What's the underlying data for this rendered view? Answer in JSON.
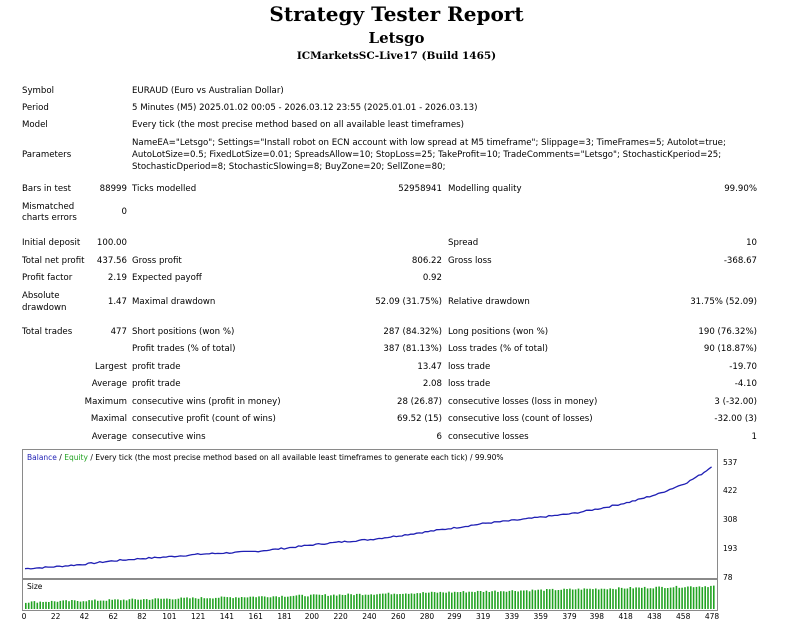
{
  "report": {
    "title": "Strategy Tester Report",
    "ea_name": "Letsgo",
    "server": "ICMarketsSC-Live17 (Build 1465)"
  },
  "settings": {
    "symbol_label": "Symbol",
    "symbol_value": "EURAUD (Euro vs Australian Dollar)",
    "period_label": "Period",
    "period_value": "5 Minutes (M5) 2025.01.02 00:05 - 2026.03.12 23:55 (2025.01.01 - 2026.03.13)",
    "model_label": "Model",
    "model_value": "Every tick (the most precise method based on all available least timeframes)",
    "parameters_label": "Parameters",
    "parameters_line1": "NameEA=\"Letsgo\"; Settings=\"Install robot on ECN account with low spread at M5 timeframe\"; Slippage=3; TimeFrames=5; Autolot=true;",
    "parameters_line2": "AutoLotSize=0.5; FixedLotSize=0.01; SpreadsAllow=10; StopLoss=25; TakeProfit=10; TradeComments=\"Letsgo\"; StochasticKperiod=25;",
    "parameters_line3": "StochasticDperiod=8; StochasticSlowing=8; BuyZone=20; SellZone=80;"
  },
  "stats": {
    "bars_label": "Bars in test",
    "bars_value": "88999",
    "ticks_label": "Ticks modelled",
    "ticks_value": "52958941",
    "quality_label": "Modelling quality",
    "quality_value": "99.90%",
    "mismatch_label_1": "Mismatched",
    "mismatch_label_2": "charts errors",
    "mismatch_value": "0",
    "deposit_label": "Initial deposit",
    "deposit_value": "100.00",
    "spread_label": "Spread",
    "spread_value": "10",
    "net_label": "Total net profit",
    "net_value": "437.56",
    "gross_profit_label": "Gross profit",
    "gross_profit_value": "806.22",
    "gross_loss_label": "Gross loss",
    "gross_loss_value": "-368.67",
    "pf_label": "Profit factor",
    "pf_value": "2.19",
    "payoff_label": "Expected payoff",
    "payoff_value": "0.92",
    "abs_dd_label_1": "Absolute",
    "abs_dd_label_2": "drawdown",
    "abs_dd_value": "1.47",
    "max_dd_label": "Maximal drawdown",
    "max_dd_value": "52.09 (31.75%)",
    "rel_dd_label": "Relative drawdown",
    "rel_dd_value": "31.75% (52.09)",
    "trades_label": "Total trades",
    "trades_value": "477",
    "short_label": "Short positions (won %)",
    "short_value": "287 (84.32%)",
    "long_label": "Long positions (won %)",
    "long_value": "190 (76.32%)",
    "profit_trades_label": "Profit trades (% of total)",
    "profit_trades_value": "387 (81.13%)",
    "loss_trades_label": "Loss trades (% of total)",
    "loss_trades_value": "90 (18.87%)",
    "largest_label": "Largest",
    "largest_profit_label": "profit trade",
    "largest_profit_value": "13.47",
    "largest_loss_label": "loss trade",
    "largest_loss_value": "-19.70",
    "average_label": "Average",
    "average_profit_label": "profit trade",
    "average_profit_value": "2.08",
    "average_loss_label": "loss trade",
    "average_loss_value": "-4.10",
    "maximum_label": "Maximum",
    "max_wins_label": "consecutive wins (profit in money)",
    "max_wins_value": "28 (26.87)",
    "max_losses_label": "consecutive losses (loss in money)",
    "max_losses_value": "3 (-32.00)",
    "maximal_label": "Maximal",
    "maximal_profit_label": "consecutive profit (count of wins)",
    "maximal_profit_value": "69.52 (15)",
    "maximal_loss_label": "consecutive loss (count of losses)",
    "maximal_loss_value": "-32.00 (3)",
    "average2_label": "Average",
    "avg_wins_label": "consecutive wins",
    "avg_wins_value": "6",
    "avg_losses_label": "consecutive losses",
    "avg_losses_value": "1"
  },
  "chart_legend": {
    "balance": "Balance",
    "sep1": " / ",
    "equity": "Equity",
    "rest": " / Every tick (the most precise method based on all available least timeframes to generate each tick) / 99.90%"
  },
  "size_label": "Size",
  "colors": {
    "balance": "#1f1fb4",
    "equity": "#22a322",
    "size_bars": "#22a322"
  },
  "chart_data": {
    "type": "line",
    "series": [
      {
        "name": "Balance",
        "x": [
          0,
          20,
          40,
          60,
          80,
          100,
          120,
          140,
          160,
          180,
          200,
          220,
          240,
          260,
          280,
          300,
          320,
          340,
          360,
          380,
          400,
          420,
          440,
          460,
          470,
          477
        ],
        "y": [
          100,
          108,
          118,
          132,
          142,
          150,
          160,
          166,
          172,
          185,
          200,
          212,
          222,
          238,
          255,
          272,
          290,
          302,
          316,
          330,
          352,
          378,
          412,
          460,
          495,
          525
        ]
      }
    ],
    "yticks": [
      "537",
      "422",
      "308",
      "193",
      "78"
    ],
    "ylim": [
      78,
      537
    ],
    "xticks": [
      "0",
      "22",
      "42",
      "62",
      "82",
      "101",
      "121",
      "141",
      "161",
      "181",
      "200",
      "220",
      "240",
      "260",
      "280",
      "299",
      "319",
      "339",
      "359",
      "379",
      "398",
      "418",
      "438",
      "458",
      "478"
    ],
    "xlim": [
      0,
      478
    ]
  }
}
